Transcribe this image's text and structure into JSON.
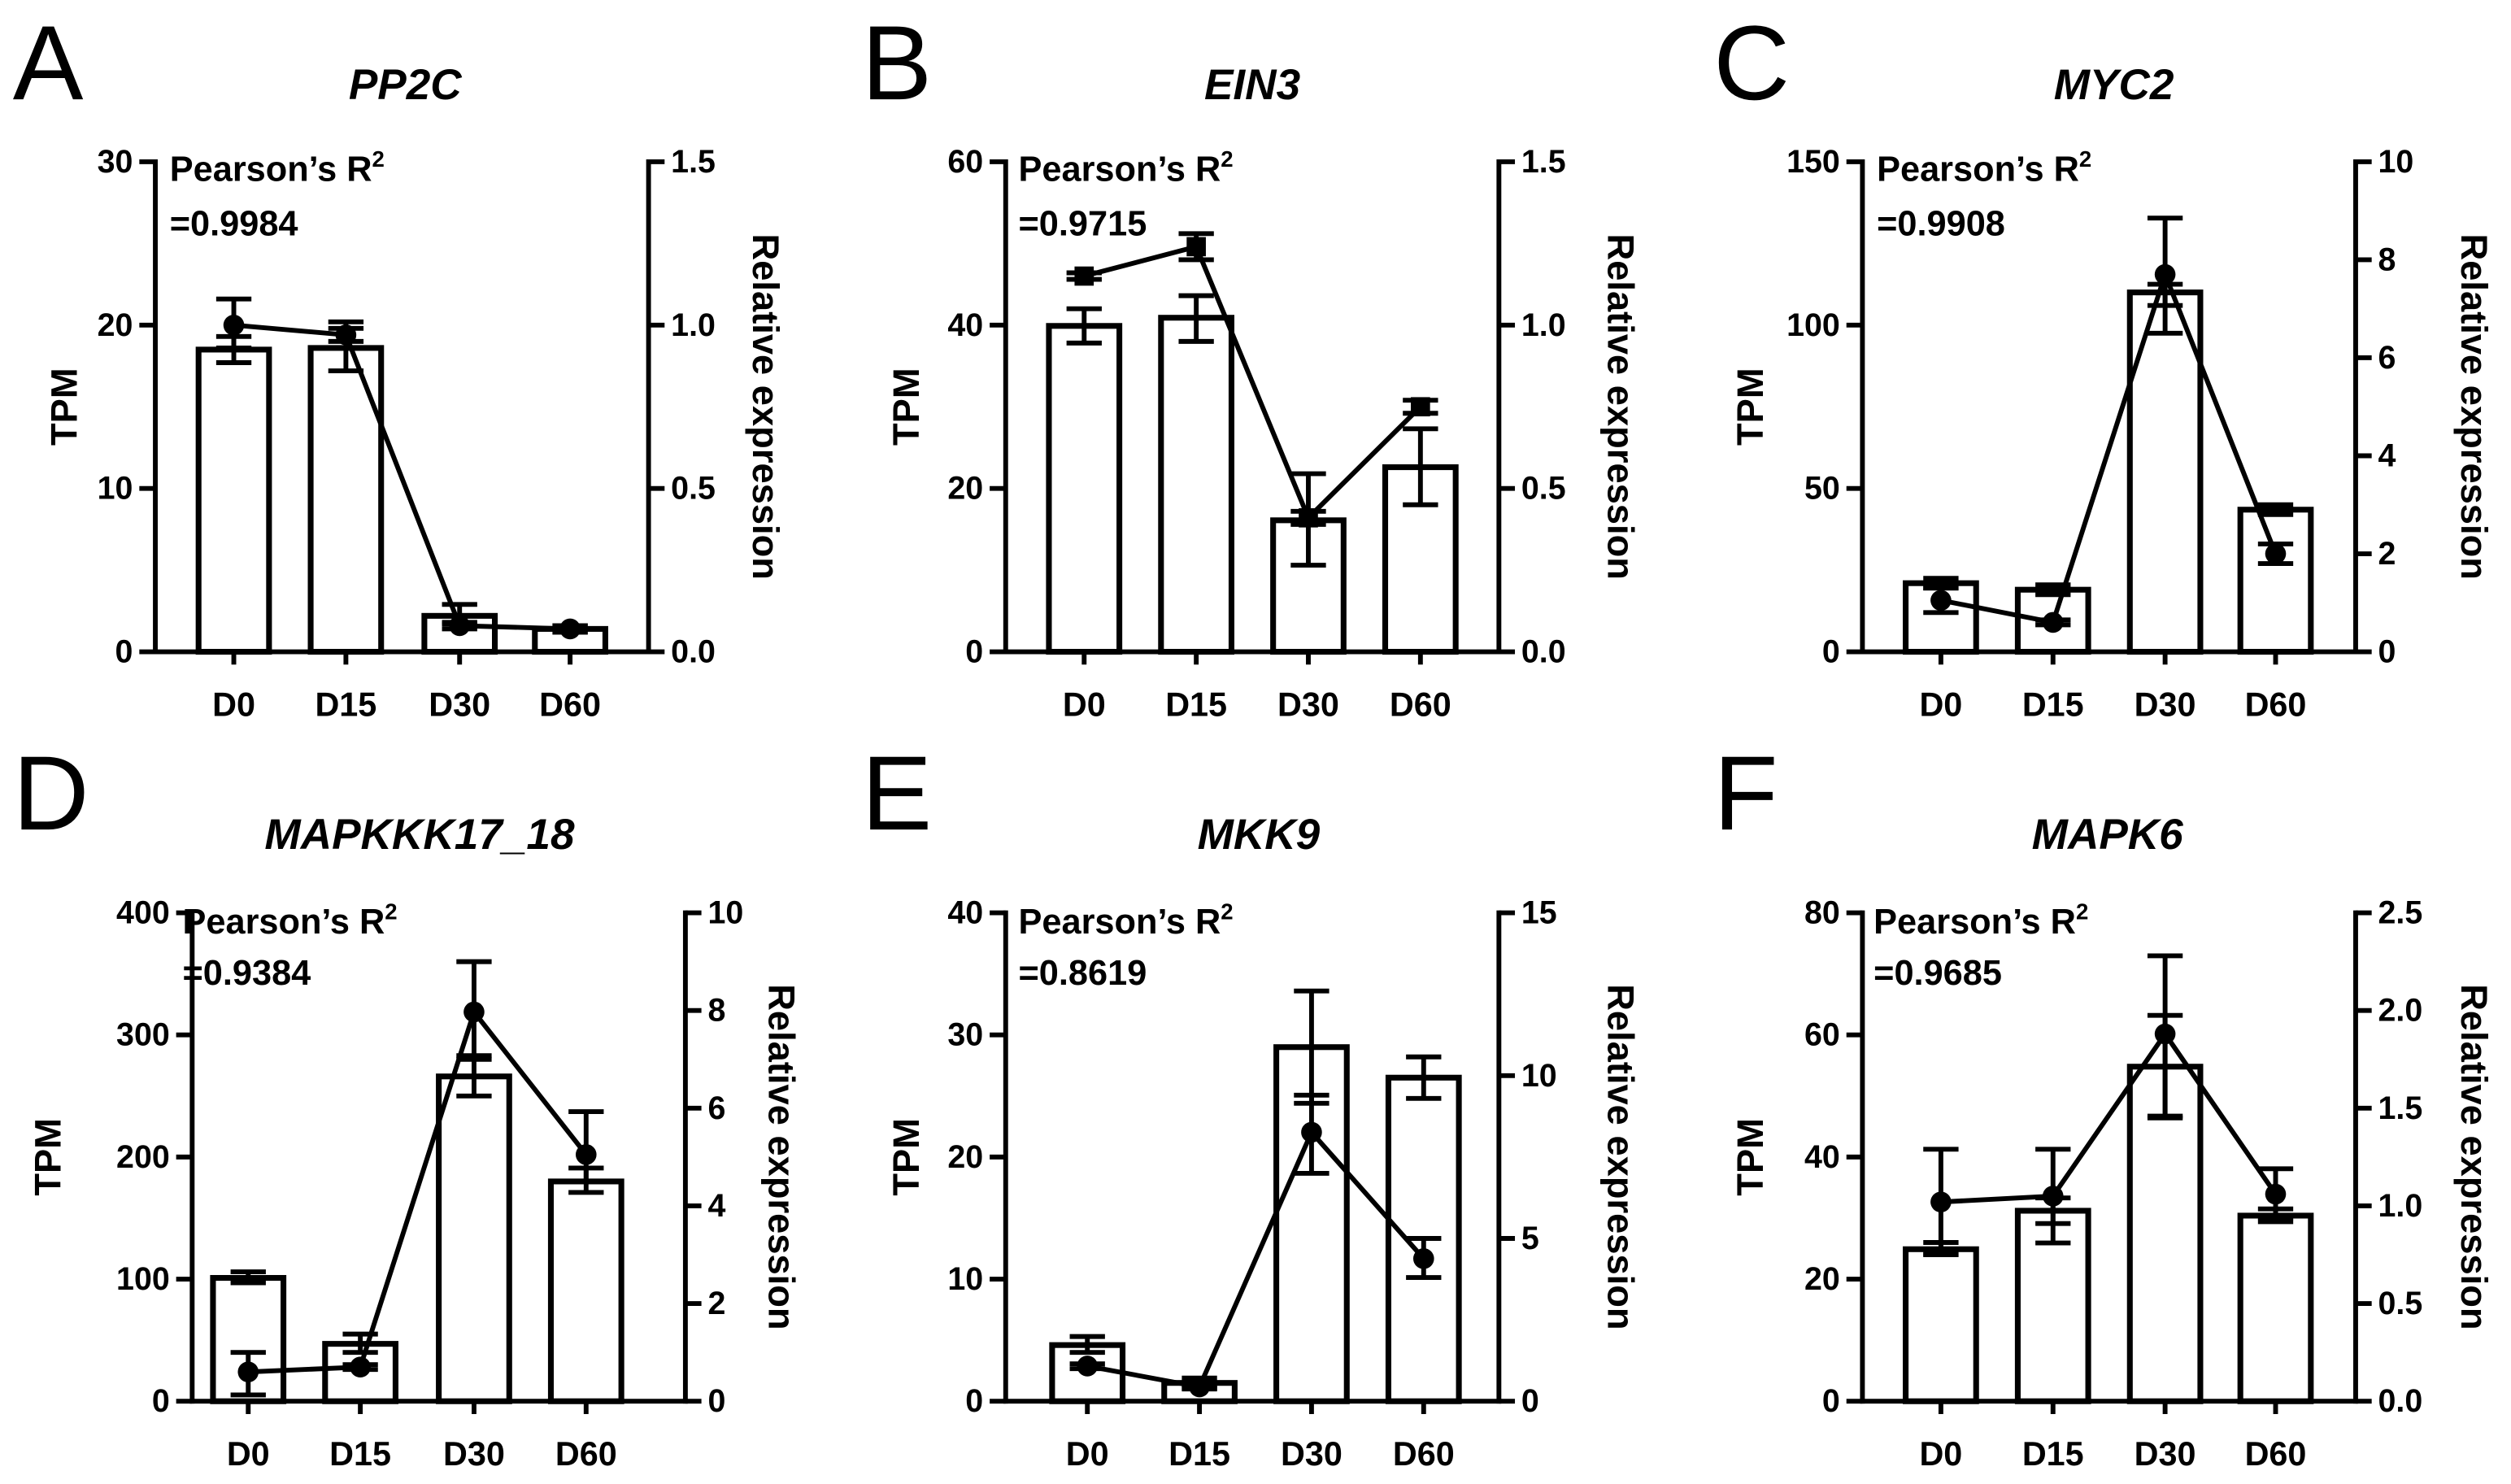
{
  "chart_data": [
    {
      "label": "A",
      "title": "PP2C",
      "type": "bar",
      "categories": [
        "D0",
        "D15",
        "D30",
        "D60"
      ],
      "ylabel": "TPM",
      "y2label": "Relative expression",
      "ylim": [
        0,
        30
      ],
      "y2lim": [
        0,
        1.5
      ],
      "yticks": [
        "0",
        "10",
        "20",
        "30"
      ],
      "y2ticks": [
        "0.0",
        "0.5",
        "1.0",
        "1.5"
      ],
      "annotation": {
        "label": "Pearson’s R",
        "sup": "2",
        "value": "=0.9984"
      },
      "bars": {
        "values": [
          18.5,
          18.6,
          2.2,
          1.4
        ],
        "err": [
          [
            17.7,
            19.3
          ],
          [
            17.2,
            20.2
          ],
          [
            1.7,
            2.9
          ],
          [
            1.2,
            1.6
          ]
        ]
      },
      "line": {
        "marker": "circle",
        "values": [
          1.0,
          0.97,
          0.08,
          0.07
        ],
        "err": [
          [
            0.93,
            1.08
          ],
          [
            0.95,
            0.99
          ],
          [
            0.07,
            0.09
          ],
          [
            0.06,
            0.08
          ]
        ]
      }
    },
    {
      "label": "B",
      "title": "EIN3",
      "type": "bar",
      "categories": [
        "D0",
        "D15",
        "D30",
        "D60"
      ],
      "ylabel": "TPM",
      "y2label": "Relative expression",
      "ylim": [
        0,
        60
      ],
      "y2lim": [
        0,
        1.5
      ],
      "yticks": [
        "0",
        "20",
        "40",
        "60"
      ],
      "y2ticks": [
        "0.0",
        "0.5",
        "1.0",
        "1.5"
      ],
      "annotation": {
        "label": "Pearson’s R",
        "sup": "2",
        "value": "=0.9715"
      },
      "bars": {
        "values": [
          39.9,
          40.9,
          16.1,
          22.6
        ],
        "err": [
          [
            37.8,
            42.0
          ],
          [
            38.0,
            43.6
          ],
          [
            10.6,
            21.8
          ],
          [
            18.0,
            27.3
          ]
        ]
      },
      "line": {
        "marker": "square",
        "values": [
          1.15,
          1.24,
          0.41,
          0.75
        ],
        "err": [
          [
            1.14,
            1.16
          ],
          [
            1.2,
            1.28
          ],
          [
            0.39,
            0.43
          ],
          [
            0.73,
            0.77
          ]
        ]
      }
    },
    {
      "label": "C",
      "title": "MYC2",
      "type": "bar",
      "categories": [
        "D0",
        "D15",
        "D30",
        "D60"
      ],
      "ylabel": "TPM",
      "y2label": "Relative expression",
      "ylim": [
        0,
        150
      ],
      "y2lim": [
        0,
        10
      ],
      "yticks": [
        "0",
        "50",
        "100",
        "150"
      ],
      "y2ticks": [
        "0",
        "2",
        "4",
        "6",
        "8",
        "10"
      ],
      "annotation": {
        "label": "Pearson’s R",
        "sup": "2",
        "value": "=0.9908"
      },
      "bars": {
        "values": [
          21,
          19,
          110,
          43.5
        ],
        "err": [
          [
            19.5,
            22.5
          ],
          [
            17.5,
            20.5
          ],
          [
            106,
            112.5
          ],
          [
            42,
            45
          ]
        ]
      },
      "line": {
        "marker": "circle",
        "values": [
          1.05,
          0.6,
          7.7,
          2.0
        ],
        "err": [
          [
            0.8,
            1.3
          ],
          [
            0.55,
            0.65
          ],
          [
            6.5,
            8.85
          ],
          [
            1.8,
            2.2
          ]
        ]
      }
    },
    {
      "label": "D",
      "title": "MAPKKK17_18",
      "type": "bar",
      "categories": [
        "D0",
        "D15",
        "D30",
        "D60"
      ],
      "ylabel": "TPM",
      "y2label": "Relative expression",
      "ylim": [
        0,
        400
      ],
      "y2lim": [
        0,
        10
      ],
      "yticks": [
        "0",
        "100",
        "200",
        "300",
        "400"
      ],
      "y2ticks": [
        "0",
        "2",
        "4",
        "6",
        "8",
        "10"
      ],
      "annotation": {
        "label": "Pearson’s R",
        "sup": "2",
        "value": "=0.9384"
      },
      "bars": {
        "values": [
          101,
          47,
          266,
          180
        ],
        "err": [
          [
            97,
            106
          ],
          [
            40,
            55
          ],
          [
            250,
            283
          ],
          [
            171,
            191
          ]
        ]
      },
      "line": {
        "marker": "circle",
        "values": [
          0.6,
          0.7,
          7.97,
          5.05
        ],
        "err": [
          [
            0.13,
            1.0
          ],
          [
            0.65,
            0.75
          ],
          [
            7.0,
            9.0
          ],
          [
            4.5,
            5.93
          ]
        ]
      }
    },
    {
      "label": "E",
      "title": "MKK9",
      "type": "bar",
      "categories": [
        "D0",
        "D15",
        "D30",
        "D60"
      ],
      "ylabel": "TPM",
      "y2label": "Relative expression",
      "ylim": [
        0,
        40
      ],
      "y2lim": [
        0,
        15
      ],
      "yticks": [
        "0",
        "10",
        "20",
        "30",
        "40"
      ],
      "y2ticks": [
        "0",
        "5",
        "10",
        "15"
      ],
      "annotation": {
        "label": "Pearson’s R",
        "sup": "2",
        "value": "=0.8619"
      },
      "bars": {
        "values": [
          4.6,
          1.5,
          29,
          26.5
        ],
        "err": [
          [
            4.0,
            5.3
          ],
          [
            1.0,
            1.9
          ],
          [
            24.4,
            33.6
          ],
          [
            24.8,
            28.2
          ]
        ]
      },
      "line": {
        "marker": "circle",
        "values": [
          1.08,
          0.44,
          8.26,
          4.38
        ],
        "err": [
          [
            1.0,
            1.15
          ],
          [
            0.4,
            0.5
          ],
          [
            7.0,
            9.4
          ],
          [
            3.8,
            5.0
          ]
        ]
      }
    },
    {
      "label": "F",
      "title": "MAPK6",
      "type": "bar",
      "categories": [
        "D0",
        "D15",
        "D30",
        "D60"
      ],
      "ylabel": "TPM",
      "y2label": "Relative expression",
      "ylim": [
        0,
        80
      ],
      "y2lim": [
        0,
        2.5
      ],
      "yticks": [
        "0",
        "20",
        "40",
        "60",
        "80"
      ],
      "y2ticks": [
        "0.0",
        "0.5",
        "1.0",
        "1.5",
        "2.0",
        "2.5"
      ],
      "annotation": {
        "label": "Pearson’s R",
        "sup": "2",
        "value": "=0.9685"
      },
      "bars": {
        "values": [
          24.9,
          31.2,
          54.8,
          30.4
        ],
        "err": [
          [
            24.1,
            26.0
          ],
          [
            29.1,
            33.3
          ],
          [
            46.7,
            63.2
          ],
          [
            29.4,
            31.5
          ]
        ]
      },
      "line": {
        "marker": "circle",
        "values": [
          1.02,
          1.05,
          1.88,
          1.06
        ],
        "err": [
          [
            0.75,
            1.29
          ],
          [
            0.81,
            1.29
          ],
          [
            1.45,
            2.28
          ],
          [
            0.94,
            1.19
          ]
        ]
      }
    }
  ]
}
